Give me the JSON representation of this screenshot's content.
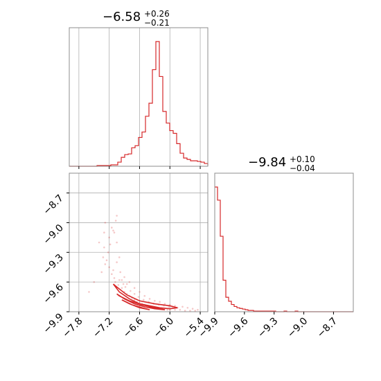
{
  "colors": {
    "series": "#d62728",
    "frame": "#8c8c8c",
    "grid": "#b0b0b0"
  },
  "chart_data": [
    {
      "type": "histogram",
      "panel": "marginal-1",
      "title": {
        "median": "−6.58",
        "plus": "+0.26",
        "minus": "−0.21"
      },
      "xlim": [
        -7.99,
        -5.25
      ],
      "xticks": [
        -7.8,
        -7.2,
        -6.6,
        -6.0,
        -5.4
      ],
      "grid": true,
      "bin_edges_start": -7.99,
      "bin_width": 0.0685,
      "counts": [
        0,
        0,
        0,
        0,
        0,
        0,
        0,
        0,
        1,
        1,
        1,
        1,
        2,
        2,
        6,
        13,
        17,
        18,
        27,
        30,
        42,
        50,
        73,
        92,
        141,
        182,
        131,
        80,
        63,
        52,
        48,
        33,
        19,
        12,
        10,
        8,
        8,
        7,
        6,
        4,
        3,
        3,
        3,
        2,
        2,
        2,
        2,
        1,
        1,
        1
      ]
    },
    {
      "type": "histogram",
      "panel": "marginal-2",
      "title": {
        "median": "−9.84",
        "plus": "+0.10",
        "minus": "−0.04"
      },
      "xlim": [
        -9.9,
        -8.5
      ],
      "xticks": [
        -9.9,
        -9.6,
        -9.3,
        -9.0,
        -8.7
      ],
      "xtick_labels": [
        "−9.9",
        "−9.6",
        "−9.3",
        "−9.0",
        "−8.7"
      ],
      "grid": false,
      "bin_edges_start": -9.9,
      "bin_width": 0.028,
      "counts": [
        190,
        170,
        115,
        48,
        22,
        16,
        11,
        8,
        6,
        5,
        4,
        3,
        2,
        2,
        1,
        1,
        1,
        1,
        1,
        1,
        1,
        1,
        0,
        0,
        0,
        1,
        0,
        0,
        0,
        1,
        0,
        0,
        0,
        0,
        0,
        0,
        0,
        0,
        0,
        0,
        0,
        0,
        0,
        0,
        0,
        0,
        0,
        0,
        0,
        0
      ]
    },
    {
      "type": "scatter",
      "panel": "joint",
      "xlim": [
        -7.99,
        -5.25
      ],
      "ylim": [
        -9.9,
        -8.5
      ],
      "xticks": [
        -7.8,
        -7.2,
        -6.6,
        -6.0,
        -5.4
      ],
      "xtick_labels": [
        "−7.8",
        "−7.2",
        "−6.6",
        "−6.0",
        "−5.4"
      ],
      "yticks": [
        -8.7,
        -9.0,
        -9.3,
        -9.6,
        -9.9
      ],
      "ytick_labels": [
        "−8.7",
        "−9.0",
        "−9.3",
        "−9.6",
        "−9.9"
      ],
      "grid": true,
      "contours": [
        {
          "level": "outer",
          "points": [
            [
              -7.12,
              -9.62
            ],
            [
              -7.0,
              -9.7
            ],
            [
              -6.8,
              -9.77
            ],
            [
              -6.6,
              -9.82
            ],
            [
              -6.4,
              -9.84
            ],
            [
              -6.2,
              -9.86
            ],
            [
              -6.0,
              -9.87
            ],
            [
              -5.85,
              -9.86
            ],
            [
              -6.0,
              -9.84
            ],
            [
              -6.3,
              -9.82
            ],
            [
              -6.6,
              -9.79
            ],
            [
              -6.85,
              -9.73
            ],
            [
              -7.05,
              -9.65
            ],
            [
              -7.12,
              -9.62
            ]
          ]
        },
        {
          "level": "middle",
          "points": [
            [
              -7.05,
              -9.72
            ],
            [
              -6.9,
              -9.77
            ],
            [
              -6.7,
              -9.82
            ],
            [
              -6.5,
              -9.85
            ],
            [
              -6.3,
              -9.87
            ],
            [
              -6.1,
              -9.88
            ],
            [
              -6.3,
              -9.86
            ],
            [
              -6.55,
              -9.83
            ],
            [
              -6.8,
              -9.79
            ],
            [
              -7.0,
              -9.74
            ],
            [
              -7.05,
              -9.72
            ]
          ]
        },
        {
          "level": "inner",
          "points": [
            [
              -6.95,
              -9.78
            ],
            [
              -6.8,
              -9.82
            ],
            [
              -6.6,
              -9.86
            ],
            [
              -6.4,
              -9.88
            ],
            [
              -6.55,
              -9.86
            ],
            [
              -6.75,
              -9.83
            ],
            [
              -6.95,
              -9.78
            ]
          ]
        }
      ],
      "points": [
        [
          -7.05,
          -8.93
        ],
        [
          -7.15,
          -9.05
        ],
        [
          -7.2,
          -9.15
        ],
        [
          -7.18,
          -9.22
        ],
        [
          -7.22,
          -9.3
        ],
        [
          -7.25,
          -9.38
        ],
        [
          -7.2,
          -9.45
        ],
        [
          -7.15,
          -9.52
        ],
        [
          -7.1,
          -9.56
        ],
        [
          -7.08,
          -9.6
        ],
        [
          -7.02,
          -9.63
        ],
        [
          -6.95,
          -9.66
        ],
        [
          -6.9,
          -9.7
        ],
        [
          -6.85,
          -9.72
        ],
        [
          -6.8,
          -9.74
        ],
        [
          -6.75,
          -9.76
        ],
        [
          -6.7,
          -9.78
        ],
        [
          -6.65,
          -9.8
        ],
        [
          -6.6,
          -9.81
        ],
        [
          -6.55,
          -9.82
        ],
        [
          -6.5,
          -9.83
        ],
        [
          -6.45,
          -9.84
        ],
        [
          -6.4,
          -9.85
        ],
        [
          -6.35,
          -9.85
        ],
        [
          -6.3,
          -9.86
        ],
        [
          -6.25,
          -9.86
        ],
        [
          -6.2,
          -9.87
        ],
        [
          -6.15,
          -9.87
        ],
        [
          -6.1,
          -9.87
        ],
        [
          -6.05,
          -9.88
        ],
        [
          -6.0,
          -9.88
        ],
        [
          -5.9,
          -9.88
        ],
        [
          -5.8,
          -9.88
        ],
        [
          -5.7,
          -9.89
        ],
        [
          -5.6,
          -9.89
        ],
        [
          -5.5,
          -9.89
        ],
        [
          -7.3,
          -9.25
        ],
        [
          -7.32,
          -9.35
        ],
        [
          -7.28,
          -9.42
        ],
        [
          -7.12,
          -9.48
        ],
        [
          -7.0,
          -9.58
        ],
        [
          -6.92,
          -9.62
        ],
        [
          -6.88,
          -9.65
        ],
        [
          -6.78,
          -9.69
        ],
        [
          -6.7,
          -9.72
        ],
        [
          -6.62,
          -9.75
        ],
        [
          -6.52,
          -9.78
        ],
        [
          -6.42,
          -9.8
        ],
        [
          -6.32,
          -9.82
        ],
        [
          -6.22,
          -9.83
        ],
        [
          -6.12,
          -9.84
        ],
        [
          -6.02,
          -9.85
        ],
        [
          -5.95,
          -9.85
        ],
        [
          -5.85,
          -9.86
        ],
        [
          -7.1,
          -9.1
        ],
        [
          -7.0,
          -9.35
        ],
        [
          -6.98,
          -9.5
        ],
        [
          -7.35,
          -9.5
        ],
        [
          -7.4,
          -9.2
        ],
        [
          -6.9,
          -9.55
        ],
        [
          -6.8,
          -9.6
        ],
        [
          -6.7,
          -9.66
        ],
        [
          -6.6,
          -9.7
        ],
        [
          -6.5,
          -9.74
        ],
        [
          -6.4,
          -9.77
        ],
        [
          -6.3,
          -9.79
        ],
        [
          -7.6,
          -9.7
        ],
        [
          -7.5,
          -9.6
        ],
        [
          -6.2,
          -9.8
        ],
        [
          -6.1,
          -9.82
        ],
        [
          -6.0,
          -9.83
        ],
        [
          -5.9,
          -9.84
        ],
        [
          -5.75,
          -9.85
        ],
        [
          -5.65,
          -9.86
        ],
        [
          -5.55,
          -9.87
        ],
        [
          -5.45,
          -9.88
        ],
        [
          -7.07,
          -8.98
        ],
        [
          -7.12,
          -9.08
        ],
        [
          -7.3,
          -9.1
        ],
        [
          -7.28,
          -9.0
        ],
        [
          -6.85,
          -9.62
        ],
        [
          -6.95,
          -9.58
        ],
        [
          -7.05,
          -9.4
        ],
        [
          -7.05,
          -9.2
        ]
      ]
    }
  ]
}
